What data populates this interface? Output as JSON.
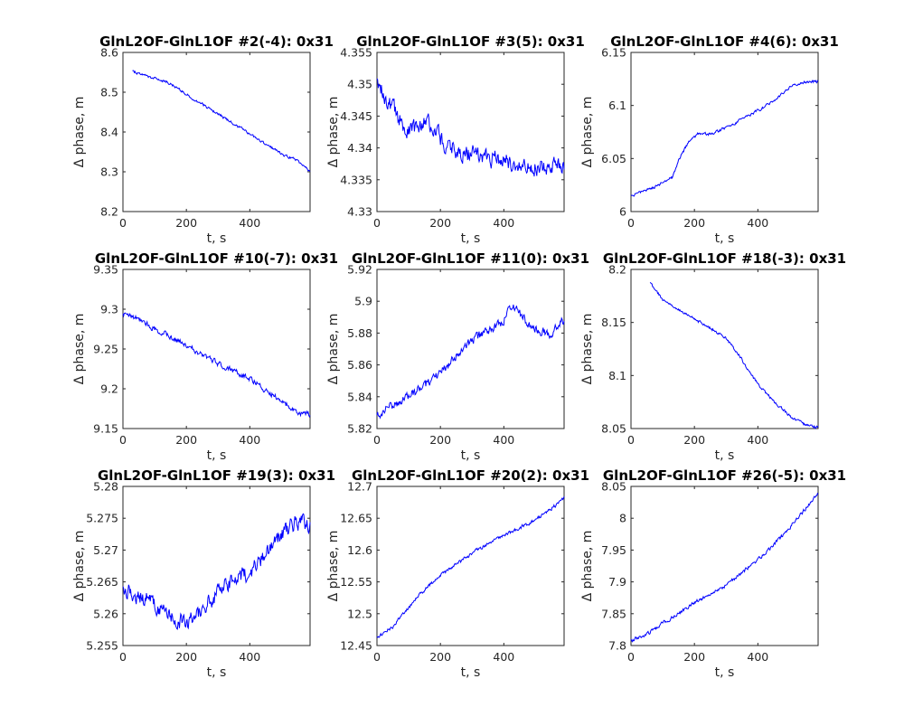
{
  "figure": {
    "background": "#ffffff",
    "line_color": "#0000ff"
  },
  "chart_data": [
    {
      "type": "line",
      "title": "GlnL2OF-GlnL1OF #2(-4): 0x31",
      "xlabel": "t, s",
      "ylabel": "Δ phase, m",
      "xlim": [
        0,
        590
      ],
      "ylim": [
        8.2,
        8.6
      ],
      "xticks": [
        0,
        200,
        400
      ],
      "xtick_labels": [
        "0",
        "200",
        "400"
      ],
      "yticks": [
        8.2,
        8.3,
        8.4,
        8.5,
        8.6
      ],
      "ytick_labels": [
        "8.2",
        "8.3",
        "8.4",
        "8.5",
        "8.6"
      ],
      "series": [
        {
          "x_start": 30,
          "x_end": 590,
          "noise": 0.003,
          "points": [
            [
              30,
              8.553
            ],
            [
              60,
              8.545
            ],
            [
              100,
              8.535
            ],
            [
              140,
              8.525
            ],
            [
              180,
              8.505
            ],
            [
              220,
              8.485
            ],
            [
              260,
              8.465
            ],
            [
              300,
              8.445
            ],
            [
              340,
              8.425
            ],
            [
              380,
              8.405
            ],
            [
              420,
              8.385
            ],
            [
              460,
              8.365
            ],
            [
              500,
              8.345
            ],
            [
              540,
              8.332
            ],
            [
              560,
              8.322
            ],
            [
              575,
              8.315
            ],
            [
              590,
              8.298
            ]
          ]
        }
      ]
    },
    {
      "type": "line",
      "title": "GlnL2OF-GlnL1OF #3(5): 0x31",
      "xlabel": "t, s",
      "ylabel": "Δ phase, m",
      "xlim": [
        0,
        590
      ],
      "ylim": [
        4.33,
        4.355
      ],
      "xticks": [
        0,
        200,
        400
      ],
      "xtick_labels": [
        "0",
        "200",
        "400"
      ],
      "yticks": [
        4.33,
        4.335,
        4.34,
        4.345,
        4.35,
        4.355
      ],
      "ytick_labels": [
        "4.33",
        "4.335",
        "4.34",
        "4.345",
        "4.35",
        "4.355"
      ],
      "series": [
        {
          "x_start": 0,
          "x_end": 590,
          "noise": 0.0012,
          "points": [
            [
              0,
              4.3505
            ],
            [
              30,
              4.348
            ],
            [
              70,
              4.3445
            ],
            [
              110,
              4.3425
            ],
            [
              150,
              4.345
            ],
            [
              200,
              4.3415
            ],
            [
              250,
              4.3395
            ],
            [
              300,
              4.339
            ],
            [
              350,
              4.3385
            ],
            [
              400,
              4.338
            ],
            [
              450,
              4.3375
            ],
            [
              500,
              4.3372
            ],
            [
              550,
              4.337
            ],
            [
              590,
              4.3365
            ]
          ]
        }
      ]
    },
    {
      "type": "line",
      "title": "GlnL2OF-GlnL1OF #4(6): 0x31",
      "xlabel": "t, s",
      "ylabel": "Δ phase, m",
      "xlim": [
        0,
        590
      ],
      "ylim": [
        6.0,
        6.15
      ],
      "xticks": [
        0,
        200,
        400
      ],
      "xtick_labels": [
        "0",
        "200",
        "400"
      ],
      "yticks": [
        6.0,
        6.05,
        6.1,
        6.15
      ],
      "ytick_labels": [
        "6",
        "6.05",
        "6.1",
        "6.15"
      ],
      "series": [
        {
          "x_start": 0,
          "x_end": 590,
          "noise": 0.0012,
          "points": [
            [
              0,
              6.015
            ],
            [
              50,
              6.02
            ],
            [
              100,
              6.027
            ],
            [
              130,
              6.032
            ],
            [
              150,
              6.048
            ],
            [
              180,
              6.065
            ],
            [
              210,
              6.073
            ],
            [
              250,
              6.073
            ],
            [
              300,
              6.079
            ],
            [
              350,
              6.087
            ],
            [
              400,
              6.095
            ],
            [
              450,
              6.104
            ],
            [
              500,
              6.117
            ],
            [
              550,
              6.122
            ],
            [
              590,
              6.123
            ]
          ]
        }
      ]
    },
    {
      "type": "line",
      "title": "GlnL2OF-GlnL1OF #10(-7): 0x31",
      "xlabel": "t, s",
      "ylabel": "Δ phase, m",
      "xlim": [
        0,
        590
      ],
      "ylim": [
        9.15,
        9.35
      ],
      "xticks": [
        0,
        200,
        400
      ],
      "xtick_labels": [
        "0",
        "200",
        "400"
      ],
      "yticks": [
        9.15,
        9.2,
        9.25,
        9.3,
        9.35
      ],
      "ytick_labels": [
        "9.15",
        "9.2",
        "9.25",
        "9.3",
        "9.35"
      ],
      "series": [
        {
          "x_start": 0,
          "x_end": 590,
          "noise": 0.003,
          "points": [
            [
              0,
              9.293
            ],
            [
              50,
              9.288
            ],
            [
              100,
              9.275
            ],
            [
              150,
              9.265
            ],
            [
              200,
              9.255
            ],
            [
              250,
              9.243
            ],
            [
              300,
              9.232
            ],
            [
              350,
              9.222
            ],
            [
              400,
              9.213
            ],
            [
              450,
              9.198
            ],
            [
              500,
              9.185
            ],
            [
              550,
              9.17
            ],
            [
              590,
              9.168
            ]
          ]
        }
      ]
    },
    {
      "type": "line",
      "title": "GlnL2OF-GlnL1OF #11(0): 0x31",
      "xlabel": "t, s",
      "ylabel": "Δ phase, m",
      "xlim": [
        0,
        590
      ],
      "ylim": [
        5.82,
        5.92
      ],
      "xticks": [
        0,
        200,
        400
      ],
      "xtick_labels": [
        "0",
        "200",
        "400"
      ],
      "yticks": [
        5.82,
        5.84,
        5.86,
        5.88,
        5.9,
        5.92
      ],
      "ytick_labels": [
        "5.82",
        "5.84",
        "5.86",
        "5.88",
        "5.9",
        "5.92"
      ],
      "series": [
        {
          "x_start": 0,
          "x_end": 590,
          "noise": 0.0025,
          "points": [
            [
              0,
              5.827
            ],
            [
              50,
              5.835
            ],
            [
              100,
              5.84
            ],
            [
              150,
              5.847
            ],
            [
              200,
              5.855
            ],
            [
              250,
              5.865
            ],
            [
              300,
              5.875
            ],
            [
              350,
              5.882
            ],
            [
              400,
              5.888
            ],
            [
              430,
              5.898
            ],
            [
              460,
              5.89
            ],
            [
              500,
              5.882
            ],
            [
              550,
              5.88
            ],
            [
              590,
              5.888
            ]
          ]
        }
      ]
    },
    {
      "type": "line",
      "title": "GlnL2OF-GlnL1OF #18(-3): 0x31",
      "xlabel": "t, s",
      "ylabel": "Δ phase, m",
      "xlim": [
        0,
        590
      ],
      "ylim": [
        8.05,
        8.2
      ],
      "xticks": [
        0,
        200,
        400
      ],
      "xtick_labels": [
        "0",
        "200",
        "400"
      ],
      "yticks": [
        8.05,
        8.1,
        8.15,
        8.2
      ],
      "ytick_labels": [
        "8.05",
        "8.1",
        "8.15",
        "8.2"
      ],
      "series": [
        {
          "x_start": 60,
          "x_end": 590,
          "noise": 0.0012,
          "points": [
            [
              60,
              8.187
            ],
            [
              100,
              8.172
            ],
            [
              150,
              8.162
            ],
            [
              200,
              8.153
            ],
            [
              250,
              8.145
            ],
            [
              300,
              8.135
            ],
            [
              340,
              8.12
            ],
            [
              380,
              8.1
            ],
            [
              420,
              8.085
            ],
            [
              460,
              8.073
            ],
            [
              500,
              8.062
            ],
            [
              550,
              8.053
            ],
            [
              590,
              8.051
            ]
          ]
        }
      ]
    },
    {
      "type": "line",
      "title": "GlnL2OF-GlnL1OF #19(3): 0x31",
      "xlabel": "t, s",
      "ylabel": "Δ phase, m",
      "xlim": [
        0,
        590
      ],
      "ylim": [
        5.255,
        5.28
      ],
      "xticks": [
        0,
        200,
        400
      ],
      "xtick_labels": [
        "0",
        "200",
        "400"
      ],
      "yticks": [
        5.255,
        5.26,
        5.265,
        5.27,
        5.275,
        5.28
      ],
      "ytick_labels": [
        "5.255",
        "5.26",
        "5.265",
        "5.27",
        "5.275",
        "5.28"
      ],
      "series": [
        {
          "x_start": 0,
          "x_end": 590,
          "noise": 0.0011,
          "points": [
            [
              0,
              5.2635
            ],
            [
              50,
              5.263
            ],
            [
              100,
              5.2615
            ],
            [
              150,
              5.2595
            ],
            [
              200,
              5.2585
            ],
            [
              250,
              5.2605
            ],
            [
              300,
              5.2635
            ],
            [
              350,
              5.2655
            ],
            [
              400,
              5.2665
            ],
            [
              450,
              5.2695
            ],
            [
              500,
              5.2725
            ],
            [
              550,
              5.2745
            ],
            [
              590,
              5.274
            ]
          ]
        }
      ]
    },
    {
      "type": "line",
      "title": "GlnL2OF-GlnL1OF #20(2): 0x31",
      "xlabel": "t, s",
      "ylabel": "Δ phase, m",
      "xlim": [
        0,
        590
      ],
      "ylim": [
        12.45,
        12.7
      ],
      "xticks": [
        0,
        200,
        400
      ],
      "xtick_labels": [
        "0",
        "200",
        "400"
      ],
      "yticks": [
        12.45,
        12.5,
        12.55,
        12.6,
        12.65,
        12.7
      ],
      "ytick_labels": [
        "12.45",
        "12.5",
        "12.55",
        "12.6",
        "12.65",
        "12.7"
      ],
      "series": [
        {
          "x_start": 0,
          "x_end": 590,
          "noise": 0.0025,
          "points": [
            [
              0,
              12.462
            ],
            [
              50,
              12.48
            ],
            [
              100,
              12.51
            ],
            [
              150,
              12.538
            ],
            [
              200,
              12.56
            ],
            [
              250,
              12.577
            ],
            [
              300,
              12.595
            ],
            [
              350,
              12.61
            ],
            [
              400,
              12.622
            ],
            [
              450,
              12.635
            ],
            [
              500,
              12.648
            ],
            [
              550,
              12.665
            ],
            [
              590,
              12.682
            ]
          ]
        }
      ]
    },
    {
      "type": "line",
      "title": "GlnL2OF-GlnL1OF #26(-5): 0x31",
      "xlabel": "t, s",
      "ylabel": "Δ phase, m",
      "xlim": [
        0,
        590
      ],
      "ylim": [
        7.8,
        8.05
      ],
      "xticks": [
        0,
        200,
        400
      ],
      "xtick_labels": [
        "0",
        "200",
        "400"
      ],
      "yticks": [
        7.8,
        7.85,
        7.9,
        7.95,
        8.0,
        8.05
      ],
      "ytick_labels": [
        "7.8",
        "7.85",
        "7.9",
        "7.95",
        "8",
        "8.05"
      ],
      "series": [
        {
          "x_start": 0,
          "x_end": 590,
          "noise": 0.0025,
          "points": [
            [
              0,
              7.808
            ],
            [
              50,
              7.818
            ],
            [
              100,
              7.835
            ],
            [
              150,
              7.85
            ],
            [
              200,
              7.868
            ],
            [
              250,
              7.88
            ],
            [
              300,
              7.895
            ],
            [
              350,
              7.915
            ],
            [
              400,
              7.935
            ],
            [
              450,
              7.958
            ],
            [
              500,
              7.985
            ],
            [
              550,
              8.015
            ],
            [
              590,
              8.04
            ]
          ]
        }
      ]
    }
  ]
}
